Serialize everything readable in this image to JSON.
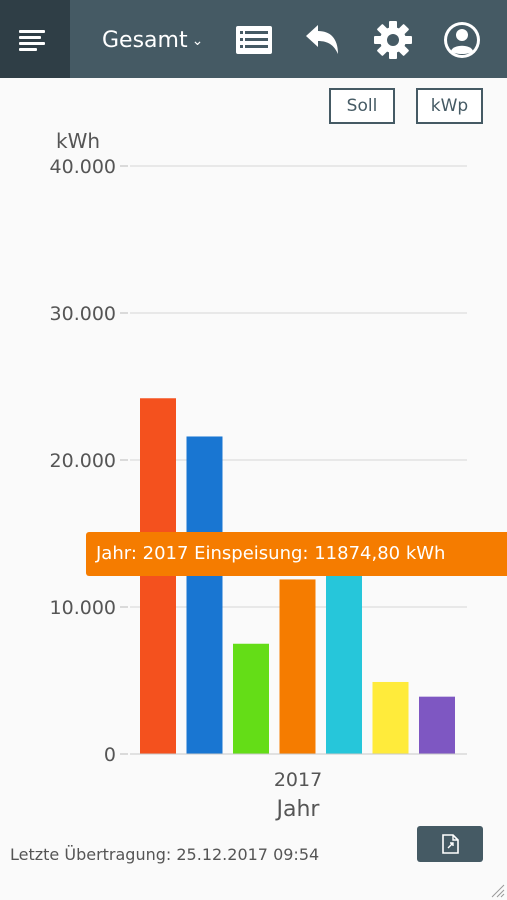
{
  "header": {
    "title": "Gesamt",
    "icons": [
      "menu-icon",
      "list-icon",
      "back-icon",
      "gear-icon",
      "account-icon"
    ]
  },
  "toggles": {
    "soll": "Soll",
    "kwp": "kWp"
  },
  "tooltip": {
    "text": "Jahr: 2017 Einspeisung: 11874,80 kWh",
    "color": "#f57c00"
  },
  "footer": {
    "last_transfer": "Letzte Übertragung: 25.12.2017 09:54"
  },
  "chart_data": {
    "type": "bar",
    "categories": [
      "2017"
    ],
    "ylabel": "kWh",
    "xlabel": "Jahr",
    "ylim": [
      0,
      40000
    ],
    "yticks": [
      "0",
      "10.000",
      "20.000",
      "30.000",
      "40.000"
    ],
    "grid": true,
    "series": [
      {
        "values": [
          24200
        ],
        "color": "#f4511e"
      },
      {
        "values": [
          21600
        ],
        "color": "#1976d2"
      },
      {
        "values": [
          7500
        ],
        "color": "#64dd17"
      },
      {
        "name": "Einspeisung",
        "values": [
          11874.8
        ],
        "color": "#f57c00"
      },
      {
        "values": [
          12300
        ],
        "color": "#26c6da"
      },
      {
        "values": [
          4900
        ],
        "color": "#ffeb3b"
      },
      {
        "values": [
          3900
        ],
        "color": "#7e57c2"
      }
    ]
  }
}
